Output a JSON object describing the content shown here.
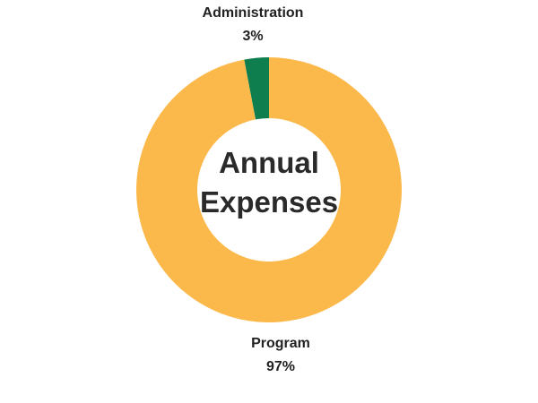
{
  "chart_data": {
    "type": "pie",
    "style": "donut",
    "title": "Annual Expenses",
    "title_lines": [
      "Annual",
      "Expenses"
    ],
    "slices": [
      {
        "label": "Administration",
        "value": 3,
        "value_label": "3%",
        "color": "#0e7e4f"
      },
      {
        "label": "Program",
        "value": 97,
        "value_label": "97%",
        "color": "#fcb94b"
      }
    ],
    "legend": "none"
  }
}
